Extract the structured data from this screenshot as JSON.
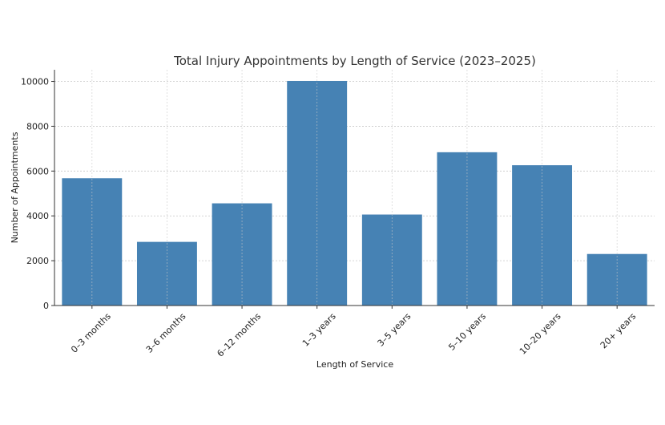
{
  "chart_data": {
    "type": "bar",
    "title": "Total Injury Appointments by Length of Service (2023–2025)",
    "xlabel": "Length of Service",
    "ylabel": "Number of Appointments",
    "categories": [
      "0–3 months",
      "3–6 months",
      "6–12 months",
      "1–3 years",
      "3–5 years",
      "5–10 years",
      "10–20 years",
      "20+ years"
    ],
    "values": [
      5680,
      2840,
      4560,
      10020,
      4060,
      6840,
      6260,
      2300
    ],
    "ylim": [
      0,
      10520
    ],
    "yticks": [
      0,
      2000,
      4000,
      6000,
      8000,
      10000
    ],
    "ytick_labels": [
      "0",
      "2000",
      "4000",
      "6000",
      "8000",
      "10000"
    ],
    "grid": true,
    "legend": "none",
    "bar_color": "#4682b4",
    "grid_color": "#c8c8c8",
    "axis_color": "#333333"
  }
}
